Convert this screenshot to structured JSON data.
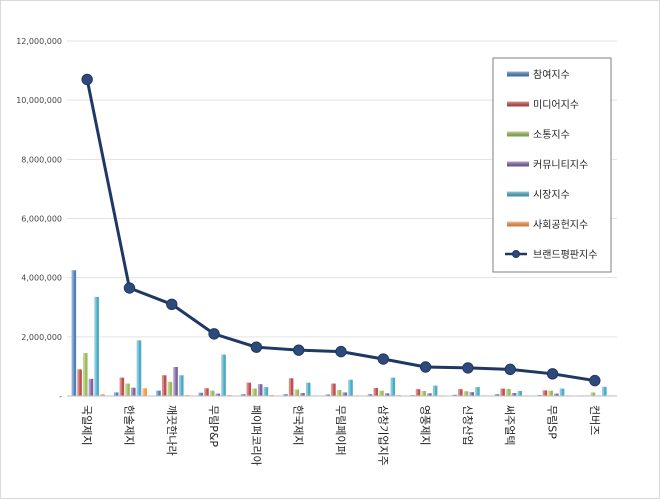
{
  "chart_data": {
    "type": "bar",
    "title": "",
    "xlabel": "",
    "ylabel": "",
    "ylim": [
      0,
      12000000
    ],
    "yticks": [
      0,
      2000000,
      4000000,
      6000000,
      8000000,
      10000000,
      12000000
    ],
    "ytick_labels": [
      "-",
      "2,000,000",
      "4,000,000",
      "6,000,000",
      "8,000,000",
      "10,000,000",
      "12,000,000"
    ],
    "grid": true,
    "legend_position": "top-right",
    "categories": [
      "국일제지",
      "한솔제지",
      "깨끗한나라",
      "무림P&P",
      "페이퍼코리아",
      "한국제지",
      "무림페이퍼",
      "삼창기업지주",
      "영풍제지",
      "신창산업",
      "써주얼텍",
      "무림SP",
      "컨버즈"
    ],
    "series": [
      {
        "name": "참여지수",
        "color": "#4f81bd",
        "values": [
          4250000,
          120000,
          180000,
          110000,
          60000,
          60000,
          50000,
          60000,
          30000,
          40000,
          60000,
          30000,
          20000
        ]
      },
      {
        "name": "미디어지수",
        "color": "#c0504d",
        "values": [
          900000,
          620000,
          700000,
          260000,
          450000,
          600000,
          420000,
          270000,
          230000,
          230000,
          250000,
          190000,
          20000
        ]
      },
      {
        "name": "소통지수",
        "color": "#9bbb59",
        "values": [
          1450000,
          420000,
          480000,
          180000,
          250000,
          220000,
          200000,
          180000,
          170000,
          160000,
          240000,
          180000,
          120000
        ]
      },
      {
        "name": "커뮤니티지수",
        "color": "#8064a2",
        "values": [
          580000,
          280000,
          980000,
          80000,
          400000,
          100000,
          120000,
          90000,
          90000,
          130000,
          100000,
          80000,
          20000
        ]
      },
      {
        "name": "시장지수",
        "color": "#4bacc6",
        "values": [
          3350000,
          1880000,
          700000,
          1400000,
          300000,
          450000,
          550000,
          620000,
          350000,
          300000,
          170000,
          250000,
          310000
        ]
      },
      {
        "name": "사회공헌지수",
        "color": "#f79646",
        "values": [
          60000,
          260000,
          30000,
          30000,
          30000,
          20000,
          20000,
          30000,
          20000,
          20000,
          20000,
          20000,
          20000
        ]
      }
    ],
    "line_series": {
      "name": "브랜드평판지수",
      "color": "#1f3864",
      "values": [
        10700000,
        3650000,
        3100000,
        2100000,
        1650000,
        1550000,
        1500000,
        1250000,
        980000,
        950000,
        900000,
        750000,
        520000
      ]
    }
  }
}
